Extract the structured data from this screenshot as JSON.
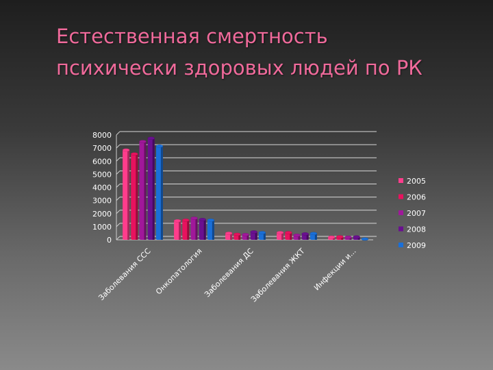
{
  "slide": {
    "title_line1": "Естественная смертность",
    "title_line2": "психически здоровых людей по РК"
  },
  "colors": {
    "2005": "#ff3d8c",
    "2006": "#e8125e",
    "2007": "#a0189a",
    "2008": "#6a1090",
    "2009": "#1a6fd8",
    "title": "#f06a9b"
  },
  "chart_data": {
    "type": "bar",
    "style": "3d-clustered-column",
    "categories": [
      "Заболевания ССС",
      "Онкопатология",
      "Заболевания ДС",
      "Заболевания ЖКТ",
      "Инфекции и..."
    ],
    "series": [
      {
        "name": "2005",
        "values": [
          6850,
          1450,
          500,
          550,
          200
        ]
      },
      {
        "name": "2006",
        "values": [
          6550,
          1500,
          420,
          550,
          230
        ]
      },
      {
        "name": "2007",
        "values": [
          7500,
          1650,
          400,
          350,
          200
        ]
      },
      {
        "name": "2008",
        "values": [
          7750,
          1550,
          600,
          450,
          220
        ]
      },
      {
        "name": "2009",
        "values": [
          7150,
          1500,
          550,
          480,
          60
        ]
      }
    ],
    "yticks": [
      0,
      1000,
      2000,
      3000,
      4000,
      5000,
      6000,
      7000,
      8000
    ],
    "ylim": [
      0,
      8000
    ],
    "grid": true,
    "legend_position": "right"
  }
}
